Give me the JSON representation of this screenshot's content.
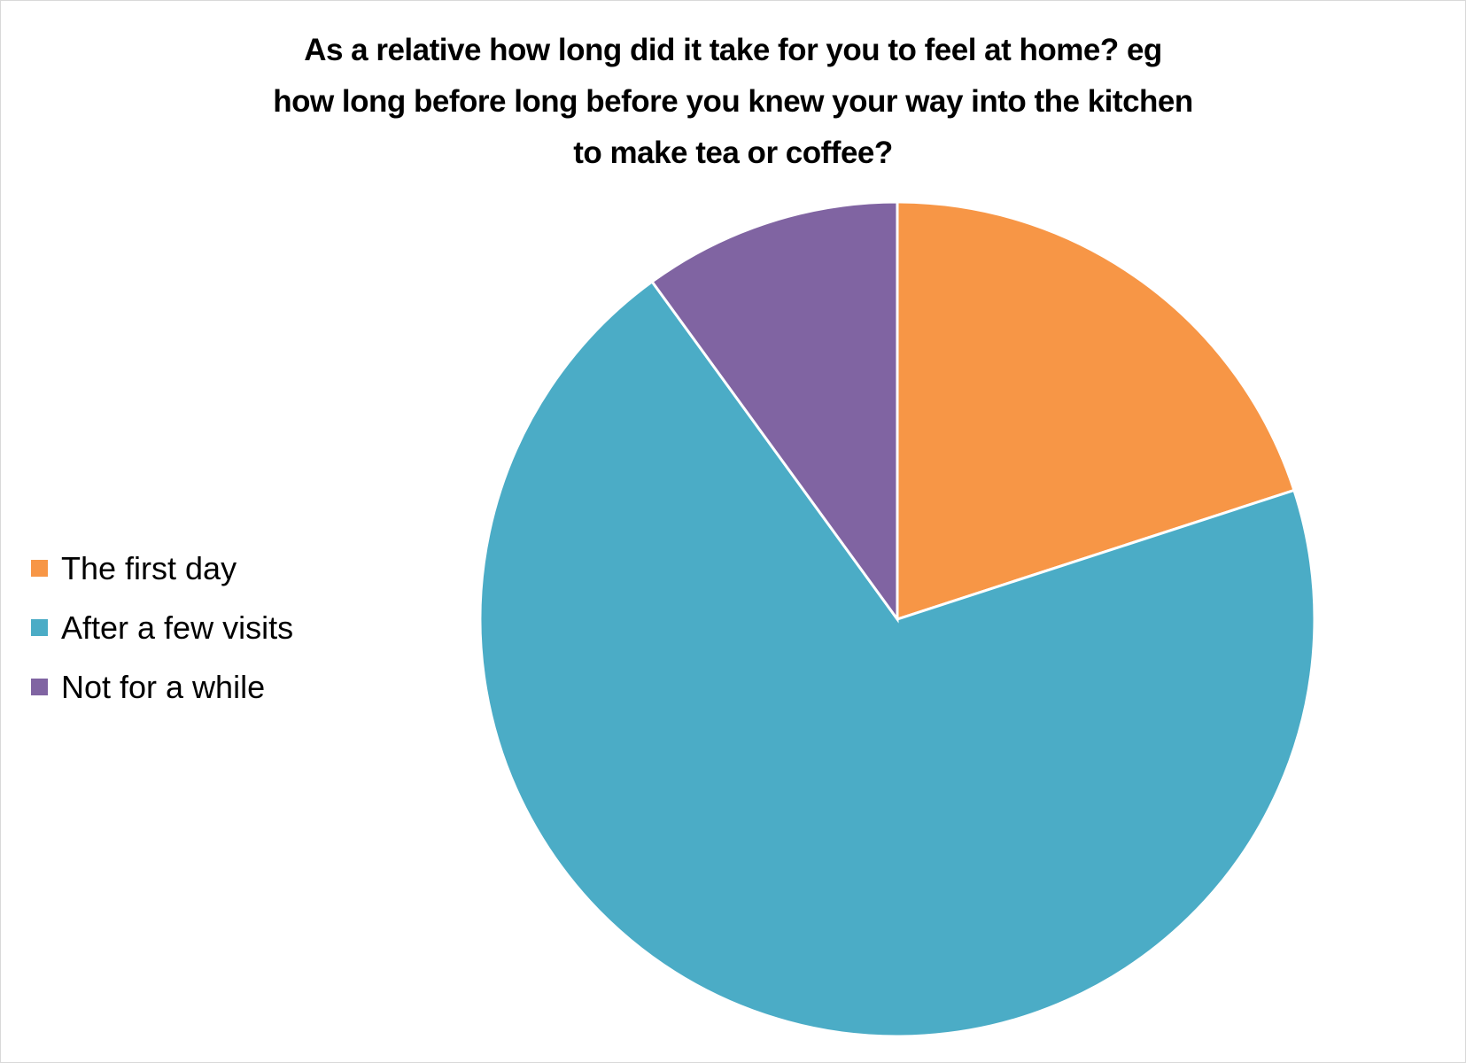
{
  "chart_data": {
    "type": "pie",
    "title_lines": [
      "As a relative how long did it take for you to feel at home? eg",
      "how long before long before you knew your way into the kitchen",
      "to make tea or coffee?"
    ],
    "categories": [
      "The first day",
      "After a few visits",
      "Not for a while"
    ],
    "values": [
      20,
      70,
      10
    ],
    "colors": [
      "#F79646",
      "#4BACC6",
      "#8064A2"
    ],
    "start_angle": "12 o'clock, clockwise",
    "legend_position": "left"
  }
}
